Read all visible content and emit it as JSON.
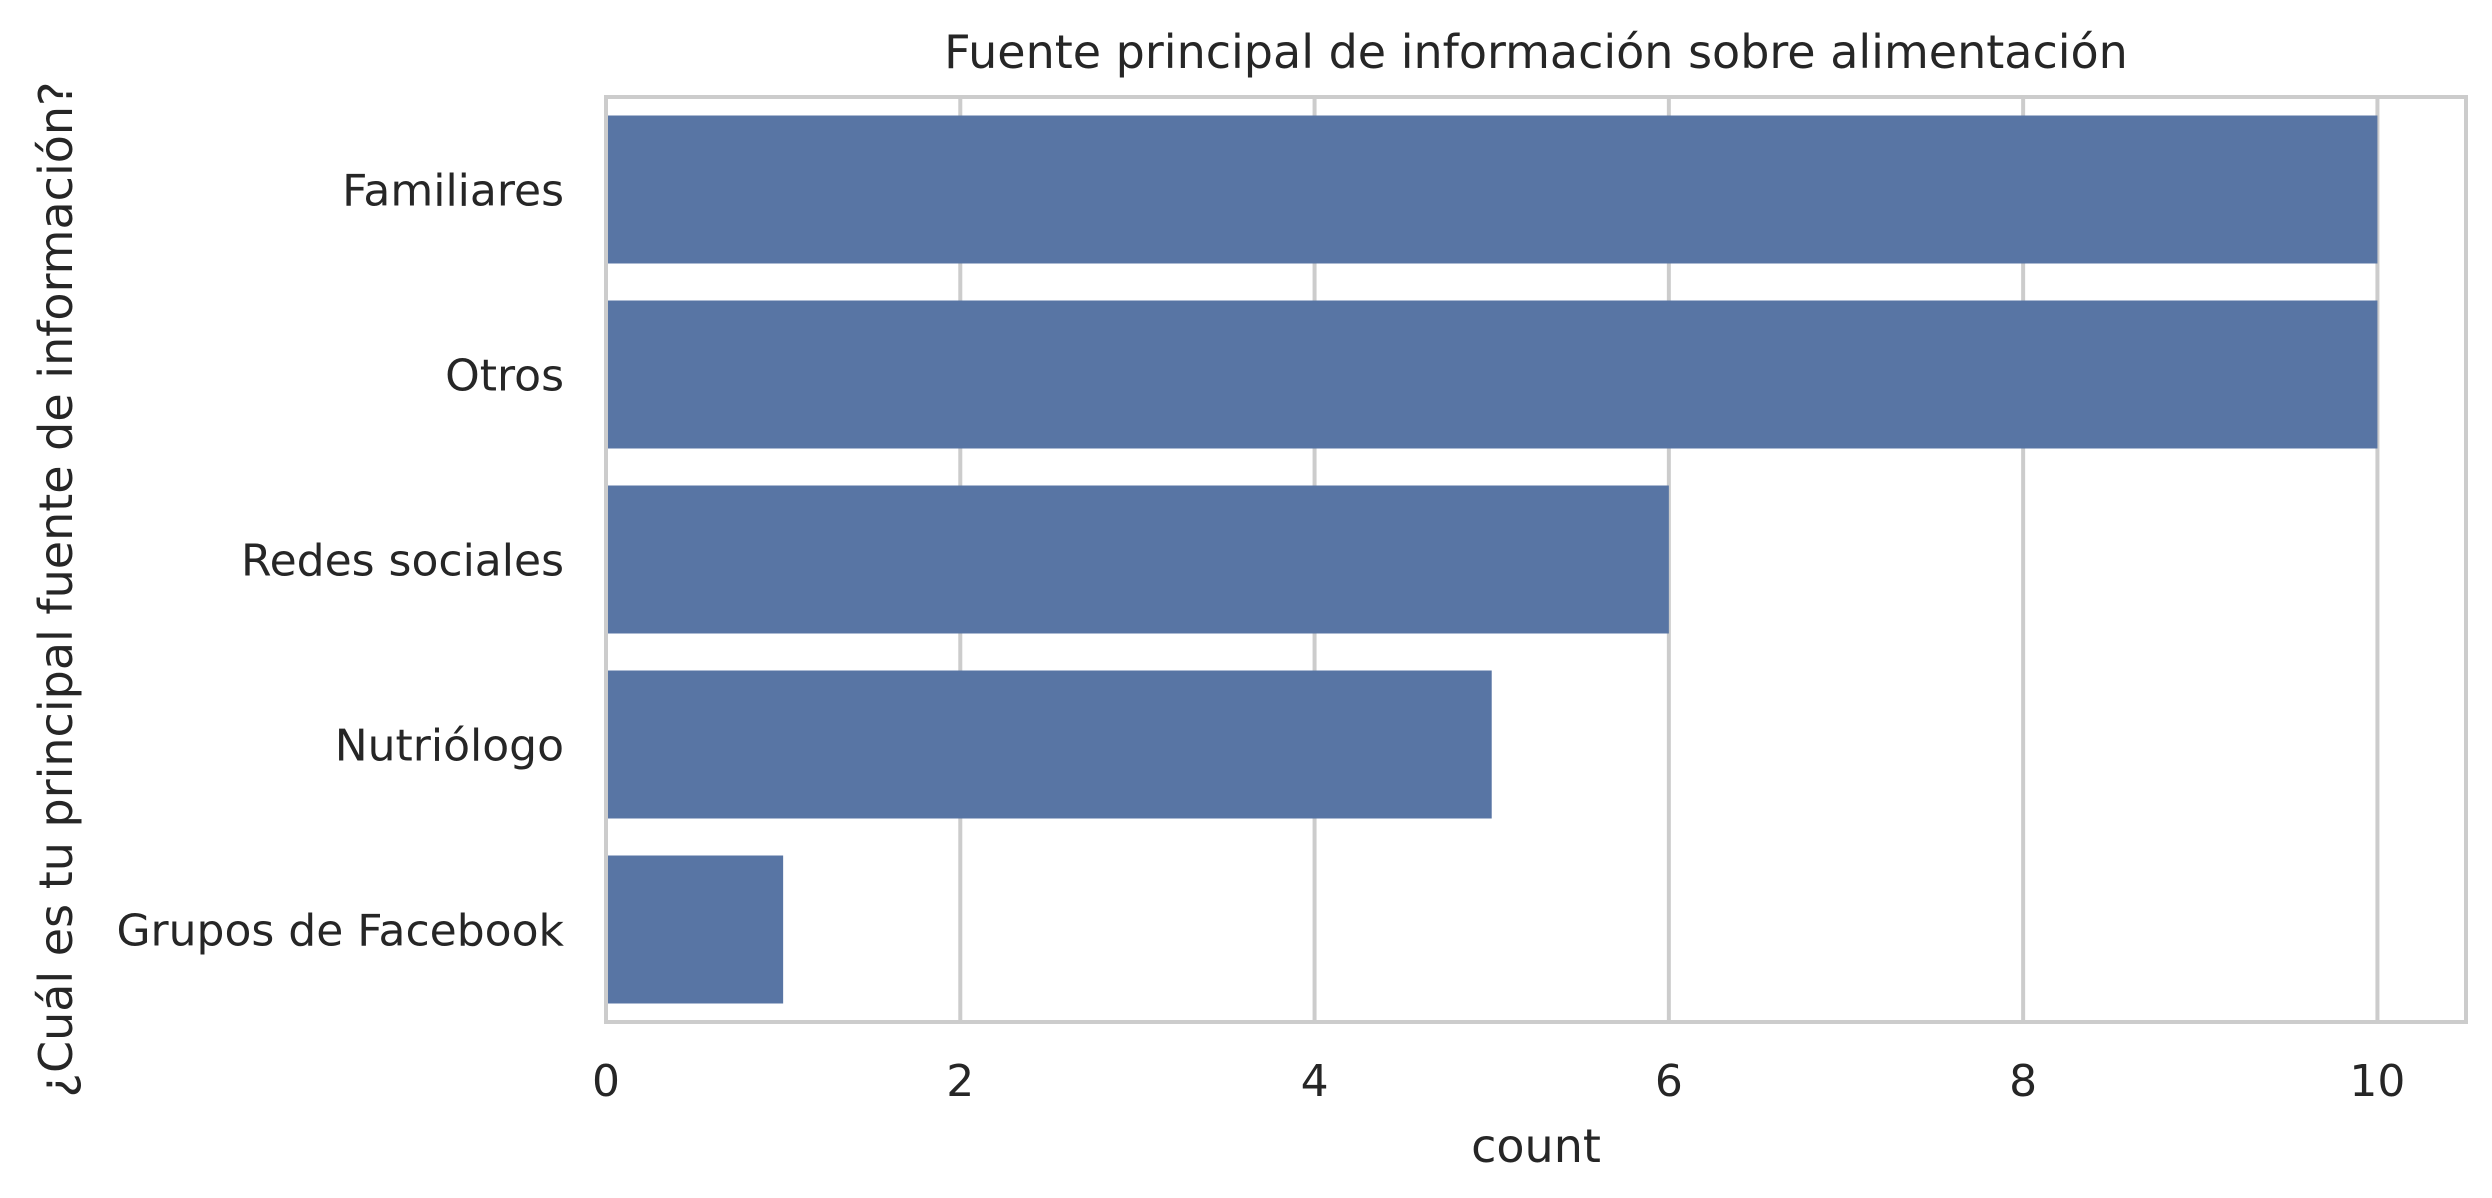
{
  "chart_data": {
    "type": "bar",
    "orientation": "horizontal",
    "title": "Fuente principal de información sobre alimentación",
    "xlabel": "count",
    "ylabel": "¿Cuál es tu principal fuente de información?",
    "categories": [
      "Familiares",
      "Otros",
      "Redes sociales",
      "Nutriólogo",
      "Grupos de Facebook"
    ],
    "values": [
      10,
      10,
      6,
      5,
      1
    ],
    "xlim": [
      0,
      10.5
    ],
    "xticks": [
      0,
      2,
      4,
      6,
      8,
      10
    ],
    "grid": "vertical",
    "legend": "none",
    "colors": {
      "bar": "#5875a4",
      "grid": "#cccccc",
      "spine": "#cccccc",
      "text": "#262626"
    }
  }
}
